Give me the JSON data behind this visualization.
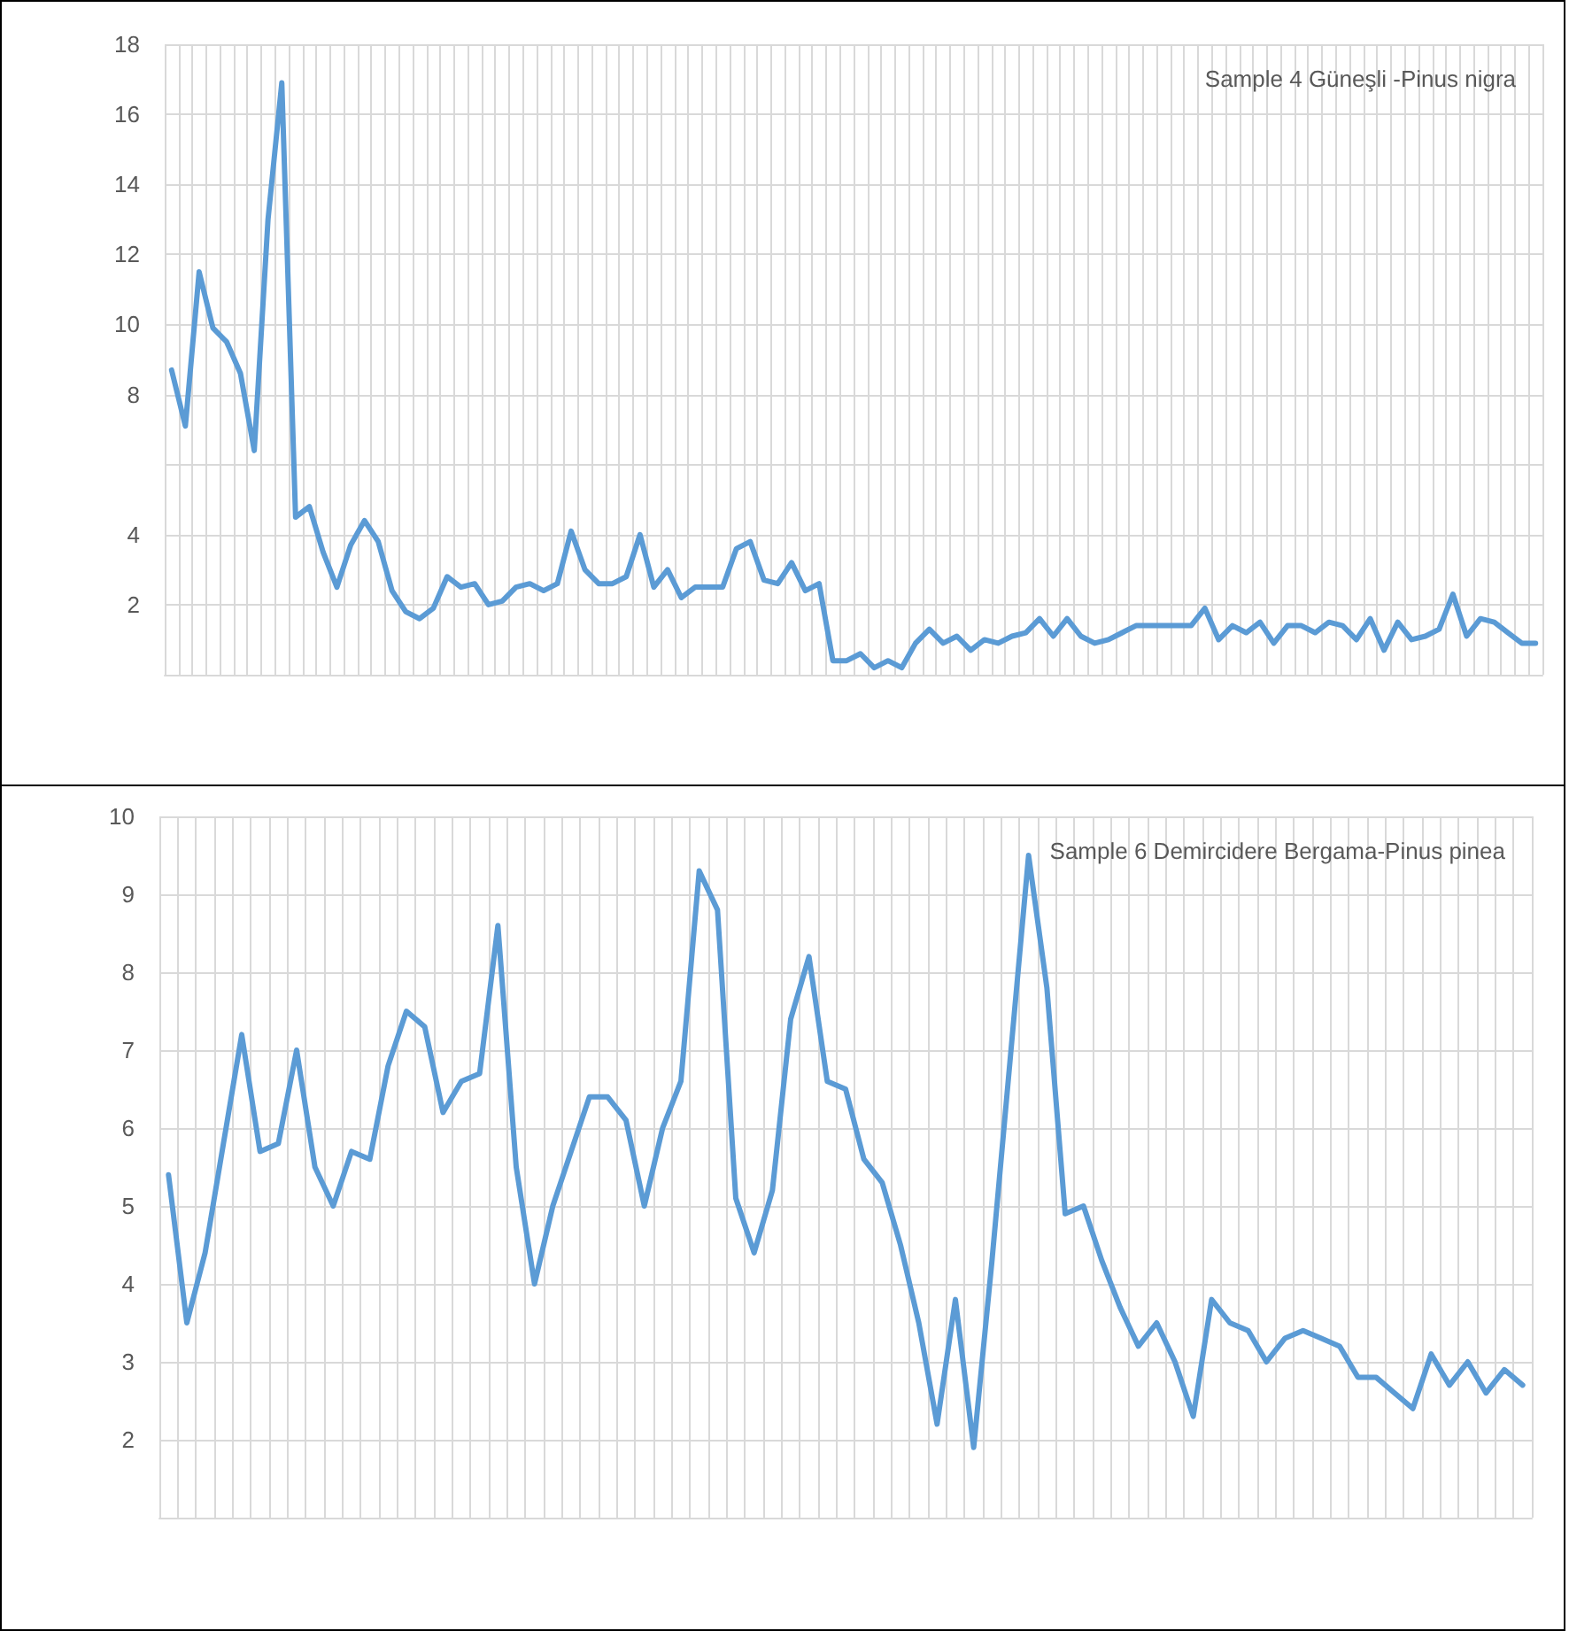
{
  "chart_data": [
    {
      "type": "line",
      "title": "Sample 4 Güneşli -Pinus nigra",
      "categories": [
        null,
        null,
        null,
        null,
        null,
        null,
        null,
        null,
        null,
        null,
        null,
        null,
        null,
        null,
        null,
        null,
        null,
        null,
        null,
        null,
        null,
        null,
        null,
        null,
        null,
        null,
        null,
        null,
        null,
        null,
        null,
        null,
        null,
        null,
        null,
        null,
        null,
        null,
        null,
        null,
        null,
        null,
        null,
        null,
        null,
        null,
        null,
        null,
        null,
        null,
        null,
        null,
        null,
        null,
        null,
        null,
        null,
        null,
        null,
        null,
        null,
        null,
        null,
        null,
        null,
        null,
        null,
        null,
        null,
        null,
        null,
        null,
        null,
        null,
        null,
        null,
        null,
        null,
        null,
        null,
        null,
        null,
        null,
        null,
        null,
        null,
        null,
        null,
        null,
        null,
        null,
        null,
        null,
        null,
        null,
        null,
        null,
        null,
        null,
        null
      ],
      "series": [
        {
          "color": "#5b9bd5",
          "values": [
            8.7,
            7.1,
            11.5,
            9.9,
            9.5,
            8.6,
            6.4,
            13.0,
            16.9,
            4.5,
            4.8,
            3.5,
            2.5,
            3.7,
            4.4,
            3.8,
            2.4,
            1.8,
            1.6,
            1.9,
            2.8,
            2.5,
            2.6,
            2.0,
            2.1,
            2.5,
            2.6,
            2.4,
            2.6,
            4.1,
            3.0,
            2.6,
            2.6,
            2.8,
            4.0,
            2.5,
            3.0,
            2.2,
            2.5,
            2.5,
            2.5,
            3.6,
            3.8,
            2.7,
            2.6,
            3.2,
            2.4,
            2.6,
            0.4,
            0.4,
            0.6,
            0.2,
            0.4,
            0.2,
            0.9,
            1.3,
            0.9,
            1.1,
            0.7,
            1.0,
            0.9,
            1.1,
            1.2,
            1.6,
            1.1,
            1.6,
            1.1,
            0.9,
            1.0,
            1.2,
            1.4,
            1.4,
            1.4,
            1.4,
            1.4,
            1.9,
            1.0,
            1.4,
            1.2,
            1.5,
            0.9,
            1.4,
            1.4,
            1.2,
            1.5,
            1.4,
            1.0,
            1.6,
            0.7,
            1.5,
            1.0,
            1.1,
            1.3,
            2.3,
            1.1,
            1.6,
            1.5,
            1.2,
            0.9,
            0.9
          ]
        }
      ],
      "ylim": [
        0,
        18
      ],
      "yticks": [
        2,
        4,
        {
          "value": 6,
          "label": null
        },
        8,
        10,
        12,
        14,
        16,
        18
      ],
      "grid": true,
      "tick_labels": "y",
      "marker": "none",
      "line_style": "solid"
    },
    {
      "type": "line",
      "title": "Sample 6 Demircidere Bergama-Pinus pinea",
      "categories": [
        null,
        null,
        null,
        null,
        null,
        null,
        null,
        null,
        null,
        null,
        null,
        null,
        null,
        null,
        null,
        null,
        null,
        null,
        null,
        null,
        null,
        null,
        null,
        null,
        null,
        null,
        null,
        null,
        null,
        null,
        null,
        null,
        null,
        null,
        null,
        null,
        null,
        null,
        null,
        null,
        null,
        null,
        null,
        null,
        null,
        null,
        null,
        null,
        null,
        null,
        null,
        null,
        null,
        null,
        null,
        null,
        null,
        null,
        null,
        null,
        null,
        null,
        null,
        null,
        null,
        null,
        null,
        null,
        null,
        null,
        null,
        null,
        null,
        null,
        null
      ],
      "series": [
        {
          "color": "#5b9bd5",
          "values": [
            5.4,
            3.5,
            4.4,
            5.8,
            7.2,
            5.7,
            5.8,
            7.0,
            5.5,
            5.0,
            5.7,
            5.6,
            6.8,
            7.5,
            7.3,
            6.2,
            6.6,
            6.7,
            8.6,
            5.5,
            4.0,
            5.0,
            5.7,
            6.4,
            6.4,
            6.1,
            5.0,
            6.0,
            6.6,
            9.3,
            8.8,
            5.1,
            4.4,
            5.2,
            7.4,
            8.2,
            6.6,
            6.5,
            5.6,
            5.3,
            4.5,
            3.5,
            2.2,
            3.8,
            1.9,
            4.3,
            6.9,
            9.5,
            7.8,
            4.9,
            5.0,
            4.3,
            3.7,
            3.2,
            3.5,
            3.0,
            2.3,
            3.8,
            3.5,
            3.4,
            3.0,
            3.3,
            3.4,
            3.3,
            3.2,
            2.8,
            2.8,
            2.6,
            2.4,
            3.1,
            2.7,
            3.0,
            2.6,
            2.9,
            2.7
          ]
        }
      ],
      "ylim": [
        1,
        10
      ],
      "yticks": [
        2,
        3,
        4,
        5,
        6,
        7,
        8,
        9,
        10
      ],
      "grid": true,
      "tick_labels": "y",
      "marker": "none",
      "line_style": "solid"
    }
  ]
}
